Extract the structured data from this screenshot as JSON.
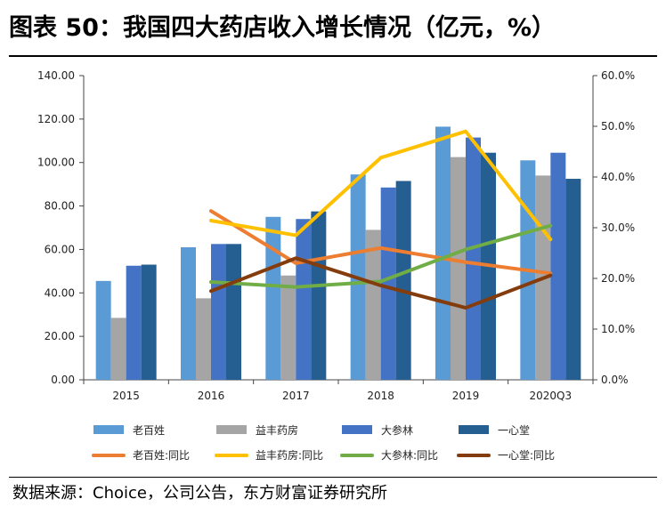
{
  "header": {
    "title": "图表 50：我国四大药店收入增长情况（亿元，%）"
  },
  "footer": {
    "source": "数据来源：Choice，公司公告，东方财富证券研究所"
  },
  "chart_data": {
    "type": "bar",
    "title": "图表 50：我国四大药店收入增长情况（亿元，%）",
    "categories": [
      "2015",
      "2016",
      "2017",
      "2018",
      "2019",
      "2020Q3"
    ],
    "y_left": {
      "range": [
        0,
        140
      ],
      "ticks": [
        "0.00",
        "20.00",
        "40.00",
        "60.00",
        "80.00",
        "100.00",
        "120.00",
        "140.00"
      ]
    },
    "y_right": {
      "range": [
        0,
        60
      ],
      "ticks": [
        "0.0%",
        "10.0%",
        "20.0%",
        "30.0%",
        "40.0%",
        "50.0%",
        "60.0%"
      ]
    },
    "bar_series": [
      {
        "name": "老百姓",
        "color": "#5B9BD5",
        "values": [
          45.5,
          61,
          75,
          94.5,
          116.5,
          101
        ]
      },
      {
        "name": "益丰药房",
        "color": "#A5A5A5",
        "values": [
          28.5,
          37.5,
          48,
          69,
          102.5,
          94
        ]
      },
      {
        "name": "大参林",
        "color": "#4472C4",
        "values": [
          52.5,
          62.5,
          74,
          88.5,
          111.5,
          104.5
        ]
      },
      {
        "name": "一心堂",
        "color": "#255E91",
        "values": [
          53,
          62.5,
          77.5,
          91.5,
          104.5,
          92.5
        ]
      }
    ],
    "line_series": [
      {
        "name": "老百姓:同比",
        "color": "#ED7D31",
        "values": [
          null,
          33.3,
          23.0,
          26.0,
          23.2,
          21.0
        ]
      },
      {
        "name": "益丰药房:同比",
        "color": "#FFC000",
        "values": [
          null,
          31.4,
          28.5,
          43.8,
          49.0,
          27.7
        ]
      },
      {
        "name": "大参林:同比",
        "color": "#70AD47",
        "values": [
          null,
          19.3,
          18.3,
          19.4,
          25.7,
          30.4
        ]
      },
      {
        "name": "一心堂:同比",
        "color": "#843C0C",
        "values": [
          null,
          17.5,
          24.0,
          18.6,
          14.2,
          20.6
        ]
      }
    ],
    "legend": {
      "position": "bottom"
    },
    "grid": false
  }
}
